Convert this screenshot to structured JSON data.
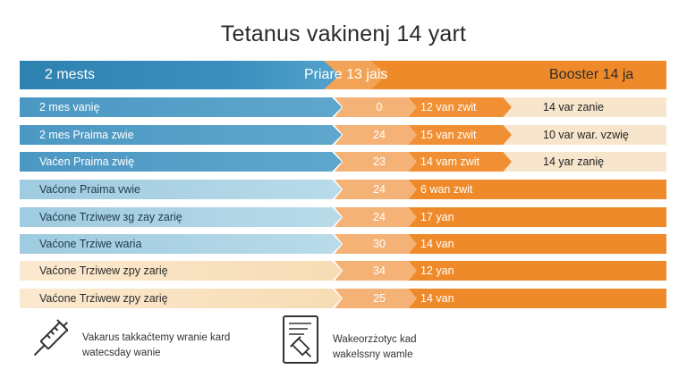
{
  "title": "Tetanus vakinenj 14 yart",
  "header": {
    "col1": "2 mests",
    "col2": "Priare 13 jais",
    "col3": "Booster 14 ja"
  },
  "rows": [
    {
      "label": "2 mes vanię",
      "num": "0",
      "mid_text": "12 van zwit",
      "booster": "14 var zanie",
      "style": "a"
    },
    {
      "label": "2 mes Praima zwie",
      "num": "24",
      "mid_text": "15 van zwit",
      "booster": "10 var war. vzwię",
      "style": "a"
    },
    {
      "label": "Vaćen Praima zwię",
      "num": "23",
      "mid_text": "14 vam zwit",
      "booster": "14 yar zanię",
      "style": "a"
    },
    {
      "label": "Vaćone Praima vwie",
      "num": "24",
      "mid_text": "6 wan zwit",
      "booster": "",
      "style": "b"
    },
    {
      "label": "Vaćone Trziwew зg zay zarię",
      "num": "24",
      "mid_text": "17 yan",
      "booster": "",
      "style": "b"
    },
    {
      "label": "Vaćone Trziwe waria",
      "num": "30",
      "mid_text": "14 van",
      "booster": "",
      "style": "b"
    },
    {
      "label": "Vaćone Trziwew zpy zarię",
      "num": "34",
      "mid_text": "12 yan",
      "booster": "",
      "style": "c"
    },
    {
      "label": "Vaćone Trziwew zpy zarię",
      "num": "25",
      "mid_text": "14 van",
      "booster": "",
      "style": "c"
    }
  ],
  "footer": {
    "left_line1": "Vakarus takkaćtemy wranie kard",
    "left_line2": "watecsday wanie",
    "right_line1": "Wakeorzżotyc kad",
    "right_line2": "wakelssny wamle",
    "left_icon": "syringe-icon",
    "right_icon": "document-syringe-icon"
  },
  "colors": {
    "blue_dark": "#3d8fbd",
    "blue_light": "#a8d2e3",
    "beige": "#f8e6cc",
    "orange": "#ef8a2a",
    "orange_light": "#f5b276"
  }
}
